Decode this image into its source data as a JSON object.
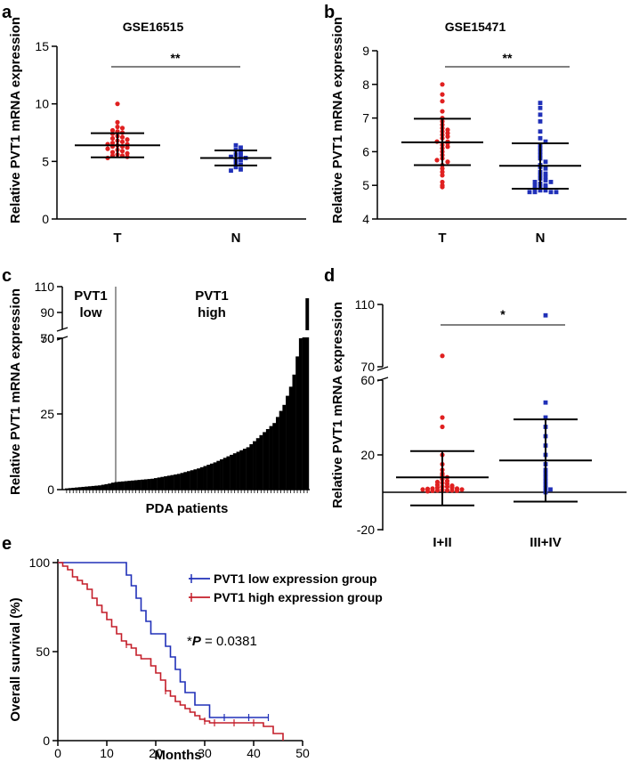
{
  "chart_data": [
    {
      "panel": "a",
      "type": "scatter",
      "title": "GSE16515",
      "ylabel": "Relative PVT1 mRNA expression",
      "ylim": [
        0,
        15
      ],
      "yticks": [
        0,
        5,
        10,
        15
      ],
      "categories": [
        "T",
        "N"
      ],
      "significance": "**",
      "colors": [
        "#e02020",
        "#2030b8"
      ],
      "groups": [
        {
          "name": "T",
          "mean": 6.4,
          "sd_low": 5.35,
          "sd_high": 7.45,
          "values": [
            10.0,
            8.4,
            8.0,
            7.9,
            7.7,
            7.6,
            7.5,
            7.4,
            7.2,
            7.1,
            7.0,
            6.9,
            6.8,
            6.7,
            6.6,
            6.5,
            6.5,
            6.4,
            6.3,
            6.3,
            6.2,
            6.1,
            6.0,
            5.9,
            5.8,
            5.7,
            5.6,
            5.5,
            5.5,
            5.4,
            5.3
          ]
        },
        {
          "name": "N",
          "mean": 5.3,
          "sd_low": 4.65,
          "sd_high": 5.95,
          "values": [
            6.4,
            6.2,
            6.0,
            5.8,
            5.6,
            5.5,
            5.4,
            5.3,
            5.2,
            5.1,
            4.9,
            4.7,
            4.5,
            4.3,
            4.2
          ]
        }
      ]
    },
    {
      "panel": "b",
      "type": "scatter",
      "title": "GSE15471",
      "ylabel": "Relative PVT1 mRNA expression",
      "ylim": [
        4,
        9
      ],
      "yticks": [
        4,
        5,
        6,
        7,
        8,
        9
      ],
      "categories": [
        "T",
        "N"
      ],
      "significance": "**",
      "colors": [
        "#e02020",
        "#2030b8"
      ],
      "groups": [
        {
          "name": "T",
          "mean": 6.28,
          "sd_low": 5.6,
          "sd_high": 6.98,
          "values": [
            8.0,
            7.7,
            7.5,
            7.2,
            7.0,
            6.9,
            6.8,
            6.7,
            6.6,
            6.5,
            6.4,
            6.3,
            6.3,
            6.2,
            6.1,
            6.0,
            5.9,
            5.8,
            5.7,
            5.6,
            5.5,
            5.4,
            5.3,
            5.1,
            5.0,
            4.95,
            6.55,
            6.65,
            6.25,
            5.75,
            6.15,
            6.45
          ]
        },
        {
          "name": "N",
          "mean": 5.58,
          "sd_low": 4.9,
          "sd_high": 6.25,
          "values": [
            7.45,
            7.3,
            7.1,
            6.9,
            6.6,
            6.4,
            6.3,
            6.2,
            6.1,
            6.0,
            5.9,
            5.8,
            5.7,
            5.6,
            5.55,
            5.5,
            5.4,
            5.3,
            5.2,
            5.15,
            5.1,
            5.1,
            5.05,
            5.0,
            5.0,
            4.95,
            4.95,
            4.9,
            4.85,
            4.85,
            4.8,
            4.8,
            4.8,
            4.8,
            5.25,
            5.35
          ]
        }
      ]
    },
    {
      "panel": "c",
      "type": "bar",
      "ylabel": "Relative PVT1 mRNA expression",
      "xlabel": "PDA patients",
      "ybreak": [
        50,
        70
      ],
      "lower_range": [
        0,
        50
      ],
      "upper_range": [
        70,
        110
      ],
      "yticks_lower": [
        0,
        25,
        50
      ],
      "yticks_upper": [
        70,
        90,
        110
      ],
      "annotation_low": [
        "PVT1",
        "low"
      ],
      "annotation_high": [
        "PVT1",
        "high"
      ],
      "values": [
        0.4,
        0.5,
        0.6,
        0.7,
        0.8,
        0.9,
        1.0,
        1.1,
        1.2,
        1.3,
        1.4,
        1.6,
        1.8,
        2.0,
        2.3,
        2.5,
        2.6,
        2.7,
        2.8,
        2.9,
        3.0,
        3.1,
        3.2,
        3.3,
        3.4,
        3.5,
        3.6,
        3.8,
        4.0,
        4.2,
        4.4,
        4.6,
        4.8,
        5.0,
        5.2,
        5.5,
        5.8,
        6.1,
        6.4,
        6.7,
        7.0,
        7.4,
        7.8,
        8.2,
        8.6,
        9.0,
        9.5,
        10.0,
        10.5,
        11.0,
        11.5,
        12.0,
        12.5,
        13.0,
        13.5,
        14.0,
        15.0,
        16.0,
        17.0,
        18.0,
        19.0,
        20.0,
        21.0,
        22.0,
        24.0,
        26.0,
        28.0,
        31.0,
        34.0,
        38.0,
        44.0,
        50.0,
        75.0,
        101.0
      ],
      "low_count": 14
    },
    {
      "panel": "d",
      "type": "scatter",
      "ylabel": "Relative PVT1 mRNA expression",
      "ybreak": [
        60,
        70
      ],
      "lower_range": [
        -20,
        60
      ],
      "upper_range": [
        70,
        110
      ],
      "yticks_lower": [
        -20,
        20,
        60
      ],
      "yticks_upper": [
        70,
        110
      ],
      "categories": [
        "I+II",
        "III+IV"
      ],
      "significance": "*",
      "colors": [
        "#e02020",
        "#2030b8"
      ],
      "groups": [
        {
          "name": "I+II",
          "mean": 8.0,
          "sd_low": -7.0,
          "sd_high": 22.0,
          "values": [
            77.0,
            40.0,
            35.0,
            20.0,
            15.0,
            12.0,
            10.0,
            9.0,
            8.0,
            7.0,
            6.0,
            5.5,
            5.0,
            4.5,
            4.0,
            3.5,
            3.0,
            3.0,
            2.5,
            2.5,
            2.0,
            2.0,
            1.8,
            1.5,
            1.5,
            1.2,
            1.0,
            1.0,
            1.0,
            0.8,
            0.8,
            0.5
          ]
        },
        {
          "name": "III+IV",
          "mean": 17.0,
          "sd_low": -5.0,
          "sd_high": 39.0,
          "values": [
            103.0,
            48.0,
            40.0,
            35.0,
            30.0,
            25.0,
            20.0,
            15.0,
            12.0,
            10.0,
            8.0,
            6.0,
            4.0,
            2.0,
            0.0,
            1.5
          ]
        }
      ]
    },
    {
      "panel": "e",
      "type": "line",
      "ylabel": "Overall survival (%)",
      "xlabel": "Months",
      "xlim": [
        0,
        50
      ],
      "ylim": [
        0,
        100
      ],
      "xticks": [
        0,
        10,
        20,
        30,
        40,
        50
      ],
      "yticks": [
        0,
        50,
        100
      ],
      "annotation": "*P = 0.0381",
      "annotation_prefix": "*",
      "annotation_p": "P",
      "annotation_rest": " = 0.0381",
      "series": [
        {
          "name": "PVT1 low expression group",
          "color": "#2030b8",
          "times": [
            0,
            14,
            15,
            16,
            17,
            18,
            19,
            20,
            21,
            22,
            23,
            24,
            25,
            26,
            27,
            28,
            29,
            31,
            43
          ],
          "surv": [
            100,
            93,
            87,
            80,
            73,
            67,
            60,
            60,
            60,
            53,
            47,
            40,
            33,
            27,
            27,
            20,
            20,
            13,
            13
          ],
          "censor": [
            [
              34,
              13
            ],
            [
              39,
              13
            ],
            [
              43,
              13
            ]
          ]
        },
        {
          "name": "PVT1 high expression group",
          "color": "#c41e2a",
          "times": [
            0,
            1,
            2,
            3,
            4,
            5,
            6,
            7,
            8,
            9,
            10,
            11,
            12,
            13,
            14,
            15,
            16,
            17,
            18,
            19,
            20,
            21,
            22,
            23,
            24,
            25,
            26,
            27,
            28,
            29,
            30,
            31,
            33,
            36,
            42,
            44,
            46
          ],
          "surv": [
            100,
            98,
            96,
            92,
            90,
            88,
            85,
            80,
            76,
            72,
            68,
            64,
            60,
            56,
            54,
            52,
            48,
            46,
            46,
            42,
            38,
            34,
            28,
            25,
            22,
            20,
            18,
            16,
            14,
            12,
            11,
            10,
            10,
            10,
            8,
            4,
            0
          ],
          "censor": [
            [
              9,
              74
            ],
            [
              14,
              54
            ],
            [
              19,
              44
            ],
            [
              22,
              28
            ],
            [
              30,
              11
            ],
            [
              32,
              10
            ],
            [
              36,
              10
            ],
            [
              40,
              10
            ]
          ]
        }
      ]
    }
  ]
}
